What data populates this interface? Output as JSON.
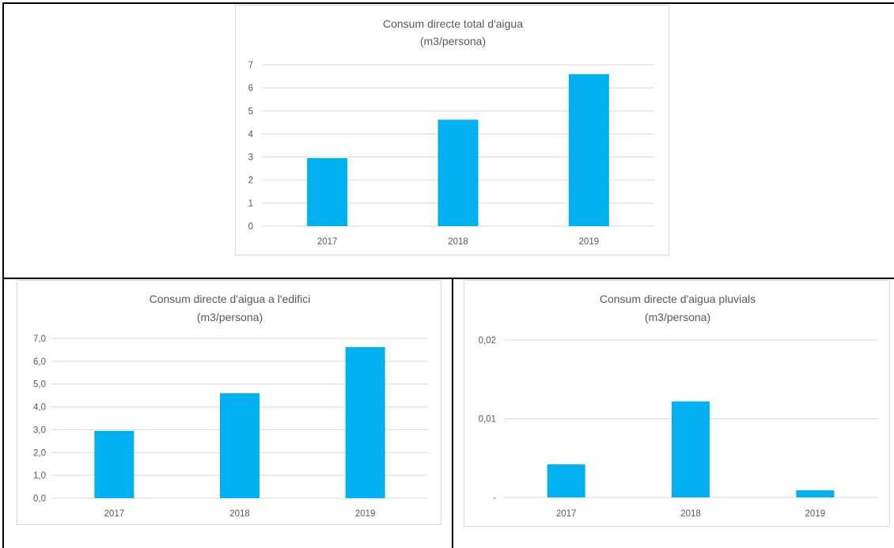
{
  "colors": {
    "bar": "#00b0f0",
    "grid": "#d9d9d9",
    "text": "#595959",
    "border": "#000000"
  },
  "chart_data": [
    {
      "type": "bar",
      "title": "Consum directe total d'aigua",
      "subtitle": "(m3/persona)",
      "categories": [
        "2017",
        "2018",
        "2019"
      ],
      "values": [
        2.95,
        4.62,
        6.6
      ],
      "ylim": [
        0,
        7
      ],
      "yticks": [
        {
          "v": 0,
          "label": "0"
        },
        {
          "v": 1,
          "label": "1"
        },
        {
          "v": 2,
          "label": "2"
        },
        {
          "v": 3,
          "label": "3"
        },
        {
          "v": 4,
          "label": "4"
        },
        {
          "v": 5,
          "label": "5"
        },
        {
          "v": 6,
          "label": "6"
        },
        {
          "v": 7,
          "label": "7"
        }
      ],
      "grid": true,
      "legend": "none"
    },
    {
      "type": "bar",
      "title": "Consum directe d'aigua a l'edifici",
      "subtitle": "(m3/persona)",
      "categories": [
        "2017",
        "2018",
        "2019"
      ],
      "values": [
        2.95,
        4.6,
        6.62
      ],
      "ylim": [
        0,
        7
      ],
      "yticks": [
        {
          "v": 0,
          "label": "0,0"
        },
        {
          "v": 1,
          "label": "1,0"
        },
        {
          "v": 2,
          "label": "2,0"
        },
        {
          "v": 3,
          "label": "3,0"
        },
        {
          "v": 4,
          "label": "4,0"
        },
        {
          "v": 5,
          "label": "5,0"
        },
        {
          "v": 6,
          "label": "6,0"
        },
        {
          "v": 7,
          "label": "7,0"
        }
      ],
      "grid": true,
      "legend": "none"
    },
    {
      "type": "bar",
      "title": "Consum directe d'aigua pluvials",
      "subtitle": "(m3/persona)",
      "categories": [
        "2017",
        "2018",
        "2019"
      ],
      "values": [
        0.0042,
        0.0122,
        0.0009
      ],
      "ylim": [
        0,
        0.02
      ],
      "yticks": [
        {
          "v": 0,
          "label": "-"
        },
        {
          "v": 0.01,
          "label": "0,01"
        },
        {
          "v": 0.02,
          "label": "0,02"
        }
      ],
      "grid": true,
      "legend": "none"
    }
  ]
}
